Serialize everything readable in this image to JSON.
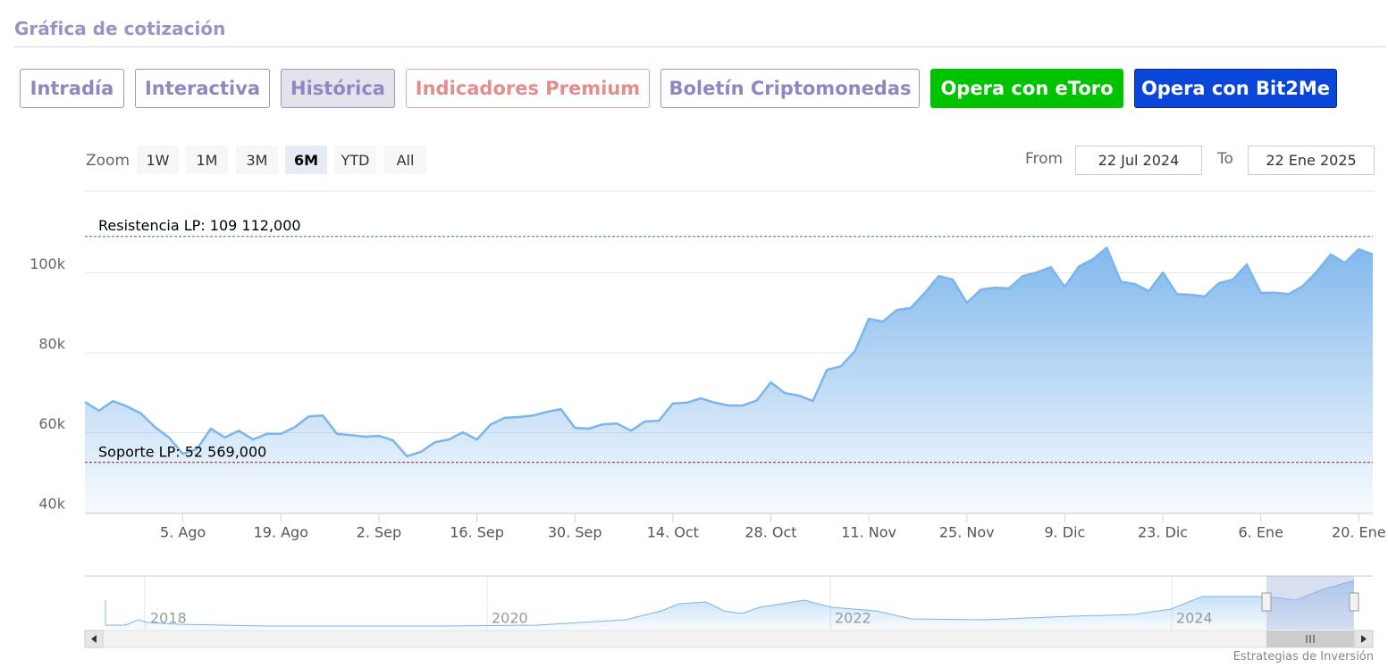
{
  "header": {
    "title": "Gráfica de cotización"
  },
  "buttons": [
    {
      "label": "Intradía",
      "text_color": "#8f86c2",
      "background": "#ffffff",
      "border": "#9a92c8"
    },
    {
      "label": "Interactiva",
      "text_color": "#8f86c2",
      "background": "#ffffff",
      "border": "#9a92c8"
    },
    {
      "label": "Histórica",
      "text_color": "#8f86c2",
      "background": "#e4e3ec",
      "border": "#9a92c8"
    },
    {
      "label": "Indicadores Premium",
      "text_color": "#e58c8c",
      "background": "#ffffff",
      "border": "#e8a3a3"
    },
    {
      "label": "Boletín Criptomonedas",
      "text_color": "#8f86c2",
      "background": "#ffffff",
      "border": "#9a92c8"
    },
    {
      "label": "Opera con eToro",
      "text_color": "#ffffff",
      "background": "#00c300",
      "border": "#00c300"
    },
    {
      "label": "Opera con Bit2Me",
      "text_color": "#ffffff",
      "background": "#0a46d9",
      "border": "#0a2a80"
    }
  ],
  "range_selector": {
    "label": "Zoom",
    "ranges": [
      "1W",
      "1M",
      "3M",
      "6M",
      "YTD",
      "All"
    ],
    "selected": "6M",
    "from_label": "From",
    "from": "22 Jul 2024",
    "to_label": "To",
    "to": "22 Ene 2025"
  },
  "chart_data": {
    "type": "area",
    "x": [
      "2024-07-22",
      "2024-07-24",
      "2024-07-26",
      "2024-07-28",
      "2024-07-30",
      "2024-08-01",
      "2024-08-03",
      "2024-08-05",
      "2024-08-07",
      "2024-08-09",
      "2024-08-11",
      "2024-08-13",
      "2024-08-15",
      "2024-08-17",
      "2024-08-19",
      "2024-08-21",
      "2024-08-23",
      "2024-08-25",
      "2024-08-27",
      "2024-08-29",
      "2024-08-31",
      "2024-09-02",
      "2024-09-04",
      "2024-09-06",
      "2024-09-08",
      "2024-09-10",
      "2024-09-12",
      "2024-09-14",
      "2024-09-16",
      "2024-09-18",
      "2024-09-20",
      "2024-09-22",
      "2024-09-24",
      "2024-09-26",
      "2024-09-28",
      "2024-09-30",
      "2024-10-02",
      "2024-10-04",
      "2024-10-06",
      "2024-10-08",
      "2024-10-10",
      "2024-10-12",
      "2024-10-14",
      "2024-10-16",
      "2024-10-18",
      "2024-10-20",
      "2024-10-22",
      "2024-10-24",
      "2024-10-26",
      "2024-10-28",
      "2024-10-30",
      "2024-11-01",
      "2024-11-03",
      "2024-11-05",
      "2024-11-07",
      "2024-11-09",
      "2024-11-11",
      "2024-11-13",
      "2024-11-15",
      "2024-11-17",
      "2024-11-19",
      "2024-11-21",
      "2024-11-23",
      "2024-11-25",
      "2024-11-27",
      "2024-11-29",
      "2024-12-01",
      "2024-12-03",
      "2024-12-05",
      "2024-12-07",
      "2024-12-09",
      "2024-12-11",
      "2024-12-13",
      "2024-12-15",
      "2024-12-17",
      "2024-12-19",
      "2024-12-21",
      "2024-12-23",
      "2024-12-25",
      "2024-12-27",
      "2024-12-29",
      "2024-12-31",
      "2025-01-02",
      "2025-01-04",
      "2025-01-06",
      "2025-01-08",
      "2025-01-10",
      "2025-01-12",
      "2025-01-14",
      "2025-01-16",
      "2025-01-18",
      "2025-01-20",
      "2025-01-22"
    ],
    "series": [
      {
        "color": "#7cb5ec",
        "values": [
          67700,
          65500,
          67900,
          66600,
          64800,
          61400,
          58800,
          54700,
          55900,
          61000,
          58800,
          60500,
          58300,
          59700,
          59700,
          61400,
          64100,
          64300,
          59700,
          59400,
          59000,
          59200,
          58100,
          54100,
          55200,
          57600,
          58300,
          60100,
          58300,
          62100,
          63700,
          63900,
          64300,
          65200,
          65900,
          61200,
          61000,
          62100,
          62300,
          60500,
          62800,
          63000,
          67300,
          67500,
          68600,
          67500,
          66800,
          66800,
          68100,
          72600,
          69900,
          69300,
          67900,
          75700,
          76600,
          80400,
          88500,
          87800,
          90700,
          91200,
          95000,
          99200,
          98300,
          92500,
          95800,
          96300,
          96100,
          99200,
          100100,
          101400,
          96500,
          101600,
          103400,
          106300,
          97800,
          97200,
          95400,
          100100,
          94700,
          94500,
          94100,
          97400,
          98300,
          102100,
          95000,
          95000,
          94700,
          96700,
          100300,
          104600,
          102500,
          105900,
          104600
        ]
      }
    ],
    "xlim": [
      "2024-07-22",
      "2025-01-22"
    ],
    "xticks": [
      {
        "value": "2024-08-05",
        "label": "5. Ago"
      },
      {
        "value": "2024-08-19",
        "label": "19. Ago"
      },
      {
        "value": "2024-09-02",
        "label": "2. Sep"
      },
      {
        "value": "2024-09-16",
        "label": "16. Sep"
      },
      {
        "value": "2024-09-30",
        "label": "30. Sep"
      },
      {
        "value": "2024-10-14",
        "label": "14. Oct"
      },
      {
        "value": "2024-10-28",
        "label": "28. Oct"
      },
      {
        "value": "2024-11-11",
        "label": "11. Nov"
      },
      {
        "value": "2024-11-25",
        "label": "25. Nov"
      },
      {
        "value": "2024-12-09",
        "label": "9. Dic"
      },
      {
        "value": "2024-12-23",
        "label": "23. Dic"
      },
      {
        "value": "2025-01-06",
        "label": "6. Ene"
      },
      {
        "value": "2025-01-20",
        "label": "20. Ene"
      }
    ],
    "ylim": [
      40000,
      120000
    ],
    "yticks": [
      {
        "value": 40000,
        "label": "40k"
      },
      {
        "value": 60000,
        "label": "60k"
      },
      {
        "value": 80000,
        "label": "80k"
      },
      {
        "value": 100000,
        "label": "100k"
      }
    ],
    "grid": true,
    "plot_lines": [
      {
        "value": 109112,
        "label": "Resistencia LP: 109 112,000",
        "color": "#2e8b2e"
      },
      {
        "value": 52569,
        "label": "Soporte LP: 52 569,000",
        "color": "#8b1a2a"
      }
    ]
  },
  "navigator": {
    "labels": [
      "2018",
      "2020",
      "2022",
      "2024"
    ]
  },
  "footer": {
    "credit": "Estrategias de Inversión"
  }
}
